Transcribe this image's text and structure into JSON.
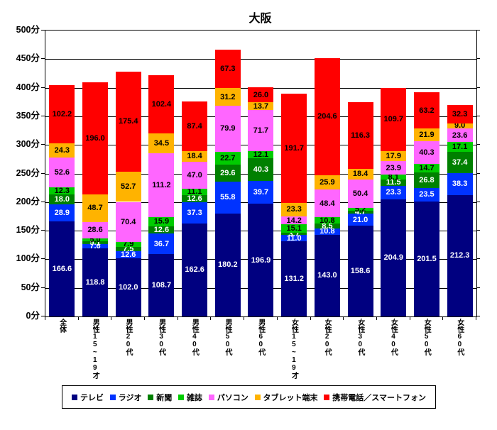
{
  "chart_data": {
    "type": "bar",
    "stacked": true,
    "title": "大阪",
    "unit": "分",
    "grid": true,
    "legend_position": "bottom",
    "y_axis": {
      "min": 0,
      "max": 500,
      "step": 50,
      "tick_labels": [
        "0分",
        "50分",
        "100分",
        "150分",
        "200分",
        "250分",
        "300分",
        "350分",
        "400分",
        "450分",
        "500分"
      ]
    },
    "categories": [
      "全体",
      "男性15~19才",
      "男性20代",
      "男性30代",
      "男性40代",
      "男性50代",
      "男性60代",
      "女性15~19才",
      "女性20代",
      "女性30代",
      "女性40代",
      "女性50代",
      "女性60代"
    ],
    "series": [
      {
        "name": "テレビ",
        "color": "#000080",
        "label_color": "#ffffff",
        "values": [
          166.6,
          118.8,
          102.0,
          108.7,
          162.6,
          180.2,
          196.9,
          131.2,
          143.0,
          158.6,
          204.9,
          201.5,
          212.3
        ]
      },
      {
        "name": "ラジオ",
        "color": "#0033FF",
        "label_color": "#ffffff",
        "values": [
          28.9,
          7.6,
          12.6,
          36.7,
          37.3,
          55.8,
          39.7,
          11.0,
          10.8,
          21.0,
          23.3,
          23.5,
          38.3
        ]
      },
      {
        "name": "新聞",
        "color": "#008000",
        "label_color": "#ffffff",
        "values": [
          18.0,
          5.1,
          7.5,
          12.6,
          12.6,
          29.6,
          40.3,
          3.7,
          8.5,
          4.7,
          11.5,
          26.8,
          37.4
        ]
      },
      {
        "name": "雑誌",
        "color": "#00CC00",
        "label_color": "#000000",
        "values": [
          12.3,
          5.0,
          7.9,
          15.9,
          11.1,
          22.7,
          12.1,
          15.1,
          10.8,
          5.2,
          8.1,
          14.7,
          17.1
        ]
      },
      {
        "name": "パソコン",
        "color": "#FF66FF",
        "label_color": "#000000",
        "values": [
          52.6,
          28.6,
          70.4,
          111.2,
          47.0,
          79.9,
          71.7,
          14.2,
          48.4,
          50.4,
          23.9,
          40.3,
          23.6
        ]
      },
      {
        "name": "タブレット端末",
        "color": "#FFB300",
        "label_color": "#000000",
        "values": [
          24.3,
          48.7,
          52.7,
          34.5,
          18.4,
          31.2,
          13.7,
          23.3,
          25.9,
          18.4,
          17.9,
          21.9,
          9.0
        ]
      },
      {
        "name": "携帯電話／スマートフォン",
        "color": "#FF0000",
        "label_color": "#000000",
        "values": [
          102.2,
          196.0,
          175.4,
          102.4,
          87.4,
          67.3,
          26.0,
          191.7,
          204.6,
          116.3,
          109.7,
          63.2,
          32.3
        ]
      }
    ],
    "axis_color": "#000000"
  }
}
